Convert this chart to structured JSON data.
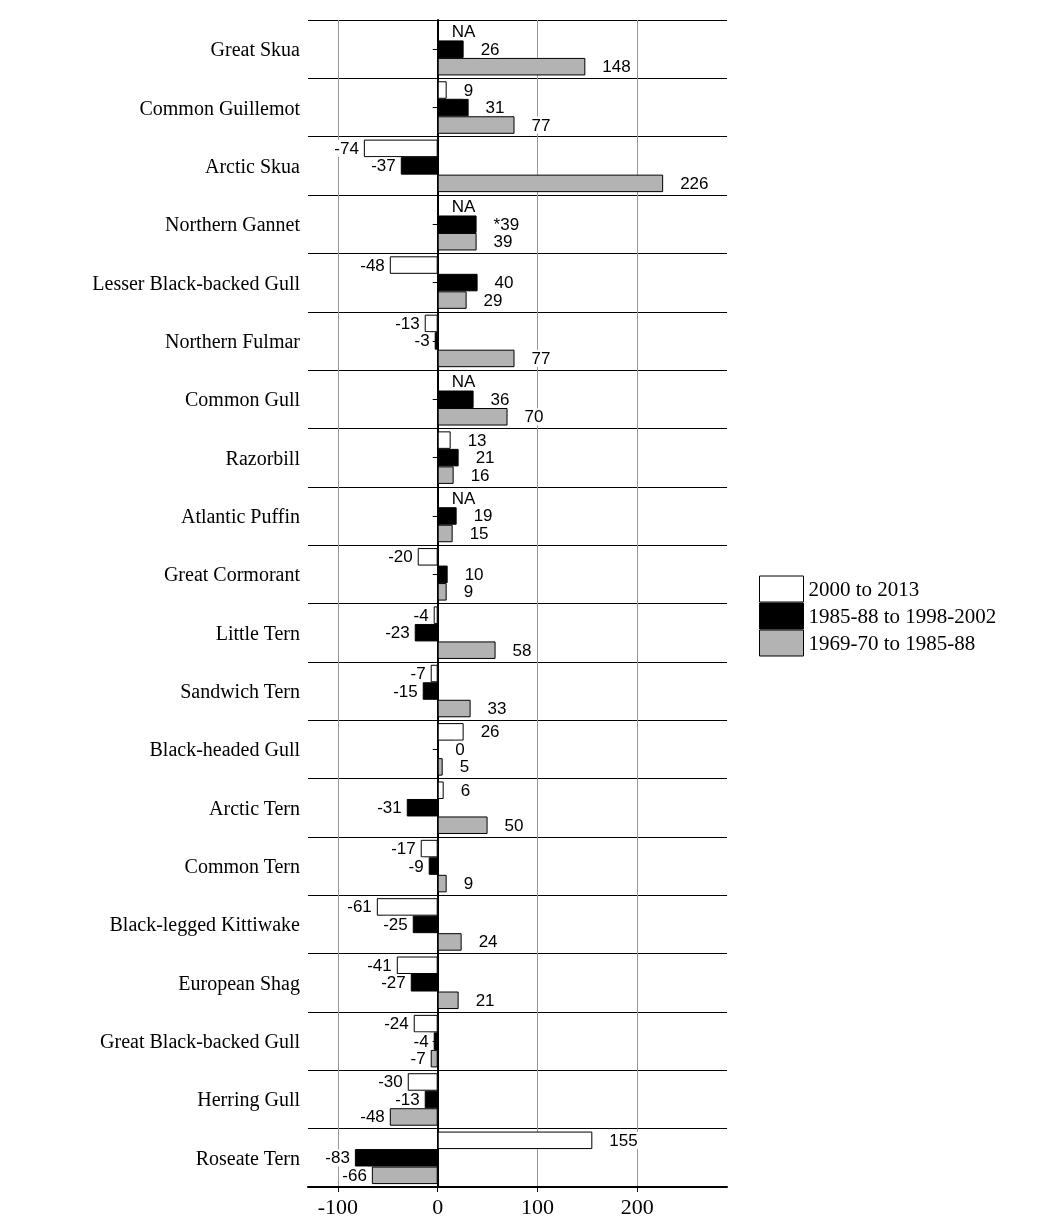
{
  "chart_data": {
    "type": "bar",
    "orientation": "horizontal",
    "categories": [
      "Great Skua",
      "Common Guillemot",
      "Arctic Skua",
      "Northern Gannet",
      "Lesser Black-backed Gull",
      "Northern Fulmar",
      "Common Gull",
      "Razorbill",
      "Atlantic Puffin",
      "Great Cormorant",
      "Little Tern",
      "Sandwich Tern",
      "Black-headed Gull",
      "Arctic Tern",
      "Common Tern",
      "Black-legged Kittiwake",
      "European Shag",
      "Great Black-backed Gull",
      "Herring Gull",
      "Roseate Tern"
    ],
    "series": [
      {
        "name": "2000 to 2013",
        "color": "#ffffff",
        "values": [
          null,
          9,
          -74,
          null,
          -48,
          -13,
          null,
          13,
          null,
          -20,
          -4,
          -7,
          26,
          6,
          -17,
          -61,
          -41,
          -24,
          -30,
          155
        ],
        "value_labels": [
          "NA",
          "9",
          "-74",
          "NA",
          "-48",
          "-13",
          "NA",
          "13",
          "NA",
          "-20",
          "-4",
          "-7",
          "26",
          "6",
          "-17",
          "-61",
          "-41",
          "-24",
          "-30",
          "155"
        ]
      },
      {
        "name": "1985-88 to 1998-2002",
        "color": "#000000",
        "values": [
          26,
          31,
          -37,
          39,
          40,
          -3,
          36,
          21,
          19,
          10,
          -23,
          -15,
          0,
          -31,
          -9,
          -25,
          -27,
          -4,
          -13,
          -83
        ],
        "value_labels": [
          "26",
          "31",
          "-37",
          "*39",
          "40",
          "-3",
          "36",
          "21",
          "19",
          "10",
          "-23",
          "-15",
          "0",
          "-31",
          "-9",
          "-25",
          "-27",
          "-4",
          "-13",
          "-83"
        ]
      },
      {
        "name": "1969-70 to 1985-88",
        "color": "#b3b3b3",
        "values": [
          148,
          77,
          226,
          39,
          29,
          77,
          70,
          16,
          15,
          9,
          58,
          33,
          5,
          50,
          9,
          24,
          21,
          -7,
          -48,
          -66
        ],
        "value_labels": [
          "148",
          "77",
          "226",
          "39",
          "29",
          "77",
          "70",
          "16",
          "15",
          "9",
          "58",
          "33",
          "5",
          "50",
          "9",
          "24",
          "21",
          "-7",
          "-48",
          "-66"
        ]
      }
    ],
    "xlim": [
      -130,
      290
    ],
    "xticks": [
      -100,
      0,
      100,
      200
    ],
    "grid": true,
    "legend": "right"
  }
}
